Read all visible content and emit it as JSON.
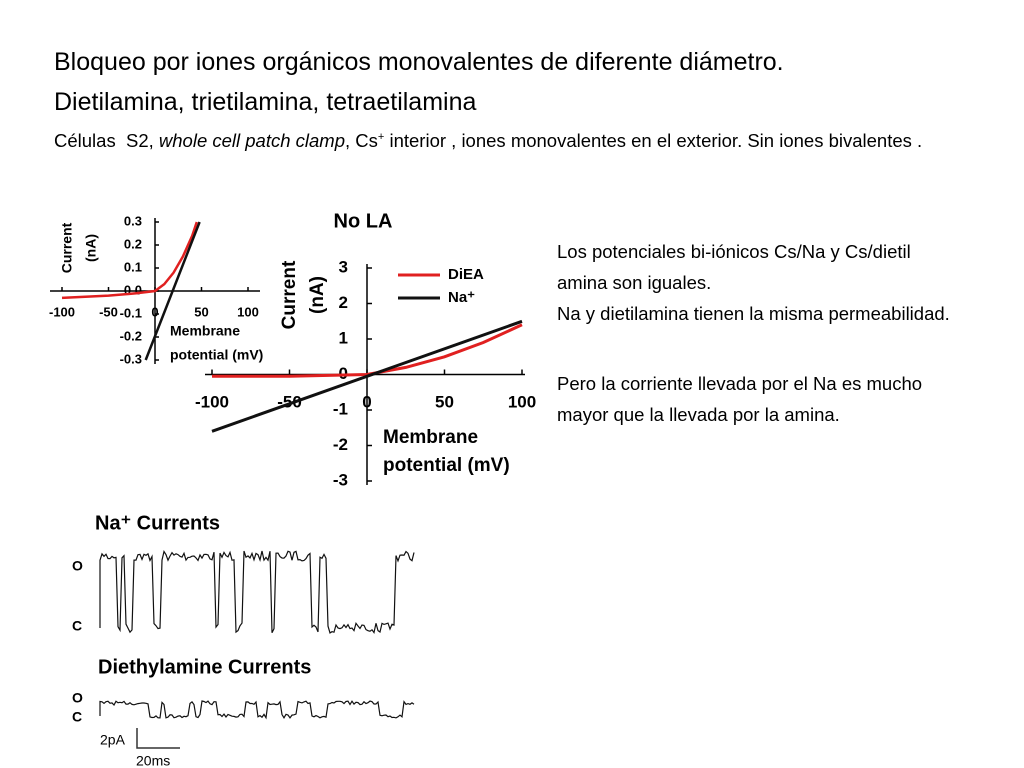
{
  "slide": {
    "title": [
      "Bloqueo por iones orgánicos monovalentes de diferente diámetro.",
      "Dietilamina,  trietilamina, tetraetilamina"
    ],
    "subtitle": [
      "Células  S2, ",
      "whole cell patch clamp",
      ", Cs",
      "+",
      " interior , iones monovalentes en el exterior. Sin iones bivalentes ."
    ],
    "notes": [
      "Los potenciales bi-iónicos Cs/Na y Cs/dietil amina son iguales.",
      "Na y dietilamina tienen la misma permeabilidad.",
      "Pero la corriente llevada por el Na es mucho mayor que la llevada por la amina."
    ]
  },
  "traces": {
    "na_title": "Na⁺ Currents",
    "diea_title": "Diethylamine Currents",
    "open": "O",
    "closed": "C",
    "scale_y": "2pA",
    "scale_x": "20ms"
  },
  "chart_data": [
    {
      "type": "line",
      "xlabel": [
        "Membrane",
        "potential (mV)"
      ],
      "ylabel": [
        "Current",
        "(nA)"
      ],
      "xlim": [
        -100,
        100
      ],
      "ylim": [
        -0.3,
        0.3
      ],
      "xticks": [
        -100,
        -50,
        0,
        50,
        100
      ],
      "yticks": [
        0.3,
        0.2,
        0.1,
        {
          "value": 0,
          "label": "0.0"
        },
        -0.1,
        -0.2,
        -0.3
      ],
      "series": [
        {
          "color": "#e02020",
          "x": [
            -100,
            -50,
            -20,
            0,
            10,
            20,
            30,
            40,
            45
          ],
          "values": [
            -0.03,
            -0.02,
            -0.01,
            0,
            0.03,
            0.08,
            0.15,
            0.24,
            0.3
          ]
        },
        {
          "color": "#111111",
          "x": [
            -10,
            48
          ],
          "values": [
            -0.3,
            0.3
          ]
        }
      ]
    },
    {
      "type": "line",
      "title": "No LA",
      "xlabel": [
        "Membrane",
        "potential (mV)"
      ],
      "ylabel": [
        "Current",
        "(nA)"
      ],
      "xlim": [
        -100,
        100
      ],
      "ylim": [
        -3,
        3
      ],
      "xticks": [
        -100,
        -50,
        0,
        50,
        100
      ],
      "yticks": [
        3,
        2,
        1,
        0,
        -1,
        -2,
        -3
      ],
      "legend": "upper right",
      "series": [
        {
          "name": "DiEA",
          "color": "#e02020",
          "x": [
            -100,
            -50,
            0,
            25,
            50,
            75,
            100
          ],
          "values": [
            -0.05,
            -0.05,
            0,
            0.2,
            0.5,
            0.9,
            1.4
          ]
        },
        {
          "name": "Na⁺",
          "color": "#111111",
          "x": [
            -100,
            100
          ],
          "values": [
            -1.6,
            1.5
          ]
        }
      ]
    }
  ]
}
